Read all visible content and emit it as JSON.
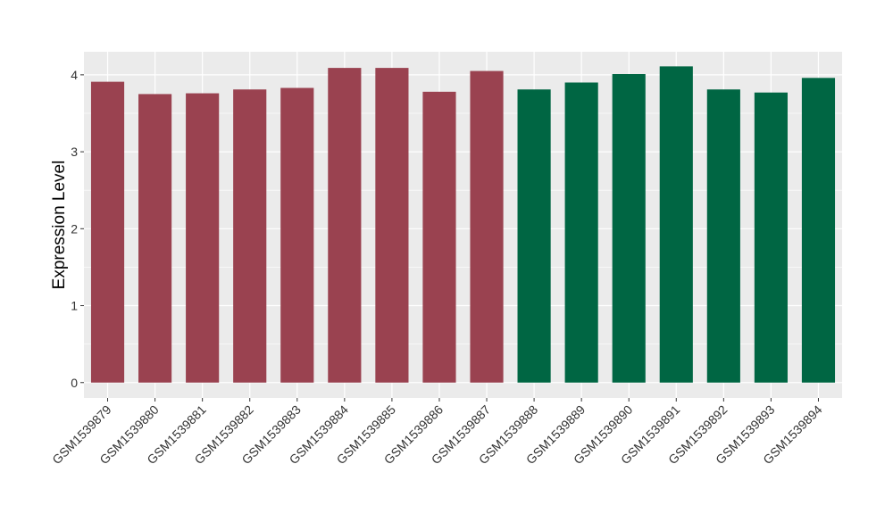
{
  "chart_data": {
    "type": "bar",
    "ylabel": "Expression Level",
    "xlabel": "",
    "title": "",
    "ylim": [
      -0.2,
      4.3
    ],
    "yticks": [
      0,
      1,
      2,
      3,
      4
    ],
    "grid": true,
    "categories": [
      "GSM1539879",
      "GSM1539880",
      "GSM1539881",
      "GSM1539882",
      "GSM1539883",
      "GSM1539884",
      "GSM1539885",
      "GSM1539886",
      "GSM1539887",
      "GSM1539888",
      "GSM1539889",
      "GSM1539890",
      "GSM1539891",
      "GSM1539892",
      "GSM1539893",
      "GSM1539894"
    ],
    "values": [
      3.91,
      3.75,
      3.76,
      3.81,
      3.83,
      4.09,
      4.09,
      3.78,
      4.05,
      3.81,
      3.9,
      4.01,
      4.11,
      3.81,
      3.77,
      3.96
    ],
    "bar_colors": [
      "#9a4250",
      "#9a4250",
      "#9a4250",
      "#9a4250",
      "#9a4250",
      "#9a4250",
      "#9a4250",
      "#9a4250",
      "#9a4250",
      "#006643",
      "#006643",
      "#006643",
      "#006643",
      "#006643",
      "#006643",
      "#006643"
    ],
    "panel_background": "#ebebeb",
    "gridline_color": "#ffffff"
  }
}
